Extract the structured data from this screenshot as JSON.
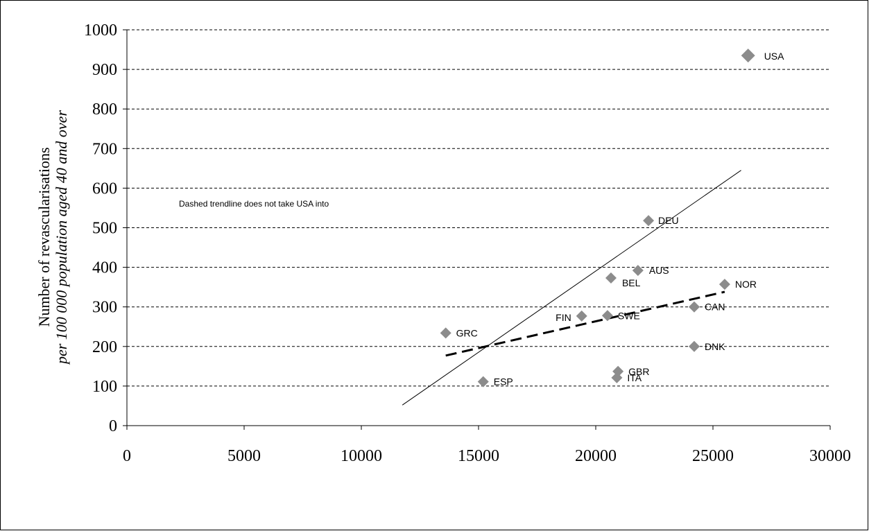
{
  "chart_data": {
    "type": "scatter",
    "title": "",
    "xlabel": "",
    "ylabel": [
      "Number of revascularisations",
      "per 100 000 population aged 40 and over"
    ],
    "xlim": [
      0,
      30000
    ],
    "ylim": [
      0,
      1000
    ],
    "x_ticks": [
      "0",
      "5000",
      "10000",
      "15000",
      "20000",
      "25000",
      "30000"
    ],
    "y_ticks": [
      "0",
      "100",
      "200",
      "300",
      "400",
      "500",
      "600",
      "700",
      "800",
      "900",
      "1000"
    ],
    "grid": "horizontal dashed",
    "marker": "diamond",
    "marker_color": "#8c8c8c",
    "annotation": "Dashed trendline does not take USA into",
    "points": [
      {
        "label": "USA",
        "x": 26500,
        "y": 935,
        "big": true
      },
      {
        "label": "DEU",
        "x": 22250,
        "y": 518
      },
      {
        "label": "AUS",
        "x": 21800,
        "y": 392
      },
      {
        "label": "BEL",
        "x": 20650,
        "y": 373
      },
      {
        "label": "NOR",
        "x": 25500,
        "y": 357
      },
      {
        "label": "CAN",
        "x": 24200,
        "y": 300
      },
      {
        "label": "FIN",
        "x": 19400,
        "y": 277
      },
      {
        "label": "SWE",
        "x": 20500,
        "y": 278
      },
      {
        "label": "GRC",
        "x": 13600,
        "y": 234
      },
      {
        "label": "DNK",
        "x": 24200,
        "y": 200
      },
      {
        "label": "GBR",
        "x": 20950,
        "y": 137
      },
      {
        "label": "ITA",
        "x": 20900,
        "y": 121
      },
      {
        "label": "ESP",
        "x": 15200,
        "y": 111
      }
    ],
    "trendlines": [
      {
        "style": "solid",
        "x": [
          11750,
          26200
        ],
        "y": [
          52,
          645
        ]
      },
      {
        "style": "dashed",
        "x": [
          13600,
          25500
        ],
        "y": [
          177,
          338
        ]
      }
    ]
  }
}
